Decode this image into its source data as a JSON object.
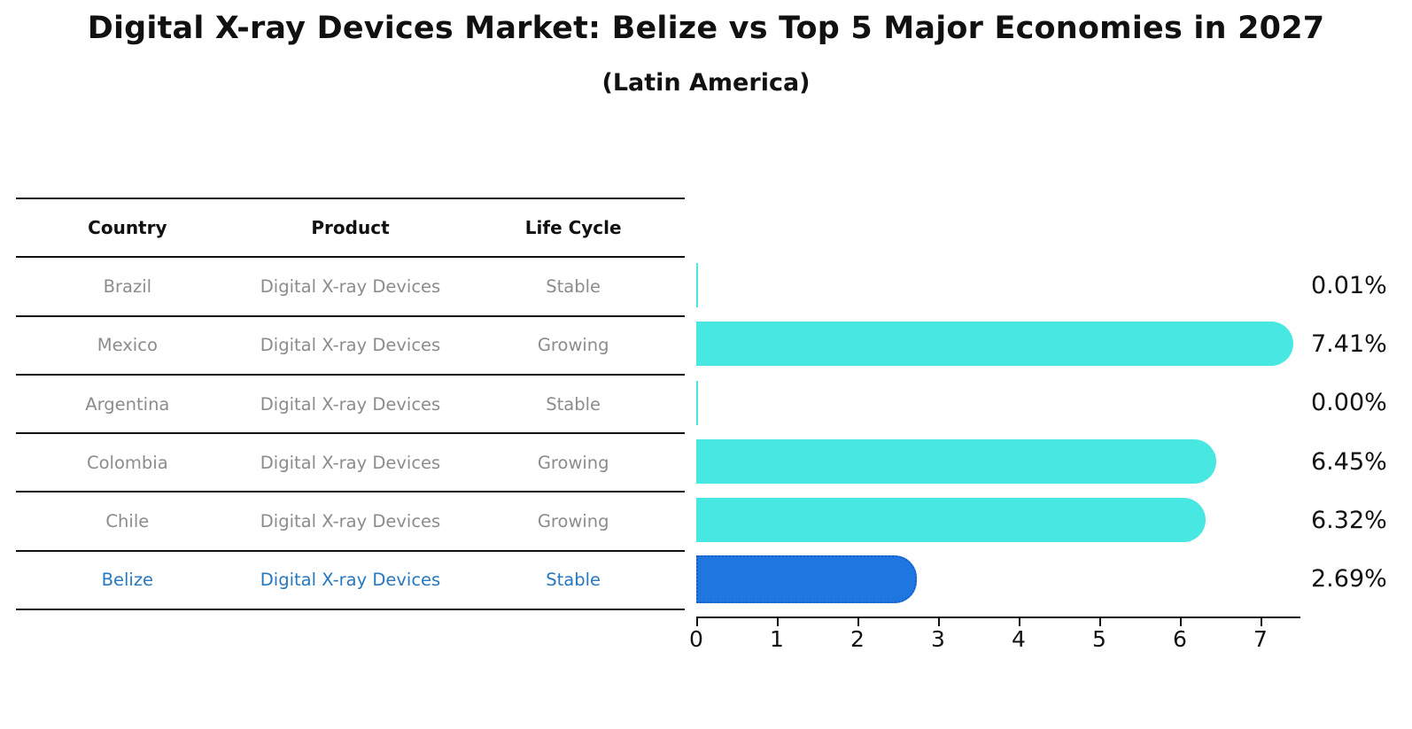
{
  "title": "Digital X-ray Devices Market: Belize vs Top 5 Major Economies in 2027",
  "subtitle": "(Latin America)",
  "table": {
    "headers": [
      "Country",
      "Product",
      "Life Cycle"
    ],
    "rows": [
      {
        "country": "Brazil",
        "product": "Digital X-ray Devices",
        "life_cycle": "Stable",
        "highlight": false
      },
      {
        "country": "Mexico",
        "product": "Digital X-ray Devices",
        "life_cycle": "Growing",
        "highlight": false
      },
      {
        "country": "Argentina",
        "product": "Digital X-ray Devices",
        "life_cycle": "Stable",
        "highlight": false
      },
      {
        "country": "Colombia",
        "product": "Digital X-ray Devices",
        "life_cycle": "Growing",
        "highlight": false
      },
      {
        "country": "Chile",
        "product": "Digital X-ray Devices",
        "life_cycle": "Growing",
        "highlight": false
      },
      {
        "country": "Belize",
        "product": "Digital X-ray Devices",
        "life_cycle": "Stable",
        "highlight": true
      }
    ]
  },
  "chart_data": {
    "type": "bar",
    "orientation": "horizontal",
    "title": "Digital X-ray Devices Market: Belize vs Top 5 Major Economies in 2027",
    "subtitle": "(Latin America)",
    "categories": [
      "Brazil",
      "Mexico",
      "Argentina",
      "Colombia",
      "Chile",
      "Belize"
    ],
    "values": [
      0.01,
      7.41,
      0.0,
      6.45,
      6.32,
      2.69
    ],
    "value_labels": [
      "0.01%",
      "7.41%",
      "0.00%",
      "6.45%",
      "6.32%",
      "2.69%"
    ],
    "highlight_category": "Belize",
    "xlabel": "",
    "ylabel": "",
    "xlim": [
      0,
      7.5
    ],
    "x_ticks": [
      "0",
      "1",
      "2",
      "3",
      "4",
      "5",
      "6",
      "7"
    ],
    "grid": false,
    "legend": false,
    "colors": {
      "bar_default": "#48e8e2",
      "bar_highlight": "#1e76e0",
      "bar_highlight_edge": "#1a5fc8",
      "highlight_text": "#2878be",
      "text": "#111111",
      "muted_text": "#8c8c8c"
    }
  }
}
